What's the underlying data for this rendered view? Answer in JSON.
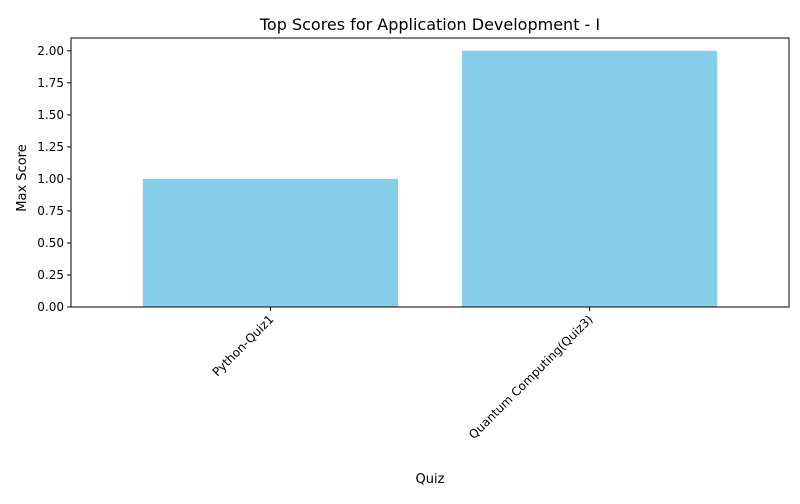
{
  "chart_data": {
    "type": "bar",
    "title": "Top Scores for Application Development - I",
    "xlabel": "Quiz",
    "ylabel": "Max Score",
    "categories": [
      "Python-Quiz1",
      "Quantum Computing(Quiz3)"
    ],
    "values": [
      1,
      2
    ],
    "ylim": [
      0,
      2.1
    ],
    "yticks": [
      "0.00",
      "0.25",
      "0.50",
      "0.75",
      "1.00",
      "1.25",
      "1.50",
      "1.75",
      "2.00"
    ],
    "bar_color": "#87ceeb",
    "grid": false,
    "legend": "none"
  }
}
